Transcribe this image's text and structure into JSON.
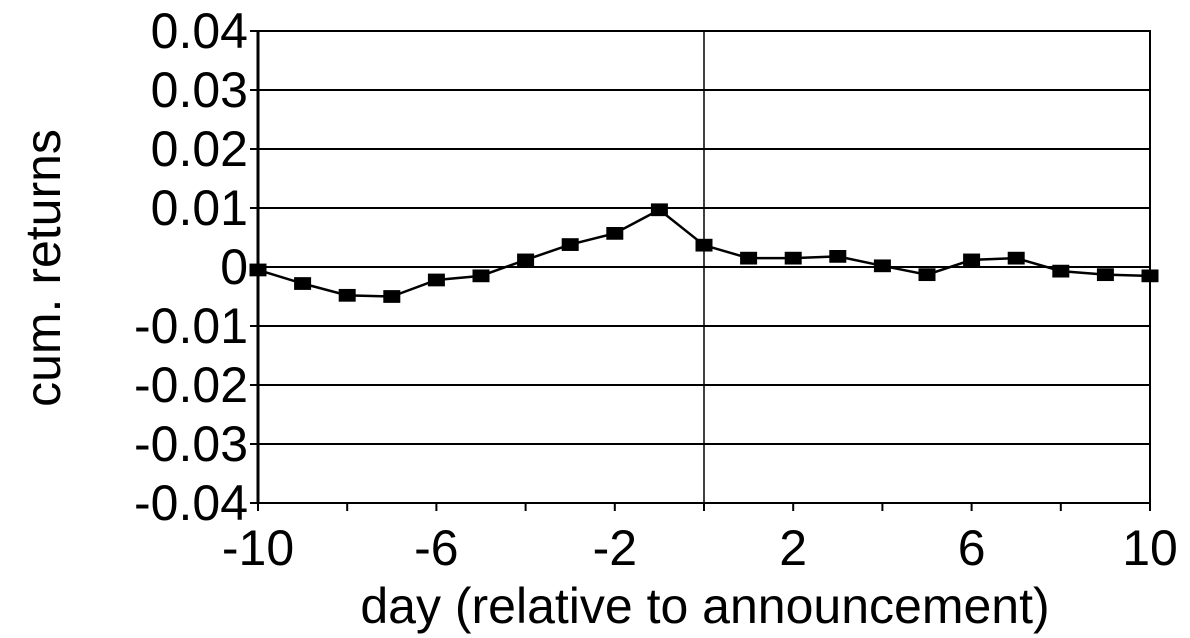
{
  "chart_data": {
    "type": "line",
    "title": "",
    "xlabel": "day (relative to announcement)",
    "ylabel": "cum. returns",
    "xlim": [
      -10,
      10
    ],
    "ylim": [
      -0.04,
      0.04
    ],
    "x_ticks": [
      -10,
      -8,
      -6,
      -4,
      -2,
      0,
      2,
      4,
      6,
      8,
      10
    ],
    "x_tick_labels": [
      {
        "value": -10,
        "label": "-10"
      },
      {
        "value": -6,
        "label": "-6"
      },
      {
        "value": -2,
        "label": "-2"
      },
      {
        "value": 2,
        "label": "2"
      },
      {
        "value": 6,
        "label": "6"
      },
      {
        "value": 10,
        "label": "10"
      }
    ],
    "y_ticks": [
      {
        "value": 0.04,
        "label": "0.04"
      },
      {
        "value": 0.03,
        "label": "0.03"
      },
      {
        "value": 0.02,
        "label": "0.02"
      },
      {
        "value": 0.01,
        "label": "0.01"
      },
      {
        "value": 0,
        "label": "0"
      },
      {
        "value": -0.01,
        "label": "-0.01"
      },
      {
        "value": -0.02,
        "label": "-0.02"
      },
      {
        "value": -0.03,
        "label": "-0.03"
      },
      {
        "value": -0.04,
        "label": "-0.04"
      }
    ],
    "grid": "horizontal",
    "reference_line_x": 0,
    "series": [
      {
        "marker": "square",
        "color": "#000000",
        "x": [
          -10,
          -9,
          -8,
          -7,
          -6,
          -5,
          -4,
          -3,
          -2,
          -1,
          0,
          1,
          2,
          3,
          4,
          5,
          6,
          7,
          8,
          9,
          10
        ],
        "y": [
          -0.0005,
          -0.0028,
          -0.0048,
          -0.005,
          -0.0022,
          -0.0015,
          0.0012,
          0.0038,
          0.0057,
          0.0097,
          0.0037,
          0.0015,
          0.0015,
          0.0018,
          0.0002,
          -0.0013,
          0.0012,
          0.0015,
          -0.0007,
          -0.0013,
          -0.0015
        ]
      }
    ]
  }
}
